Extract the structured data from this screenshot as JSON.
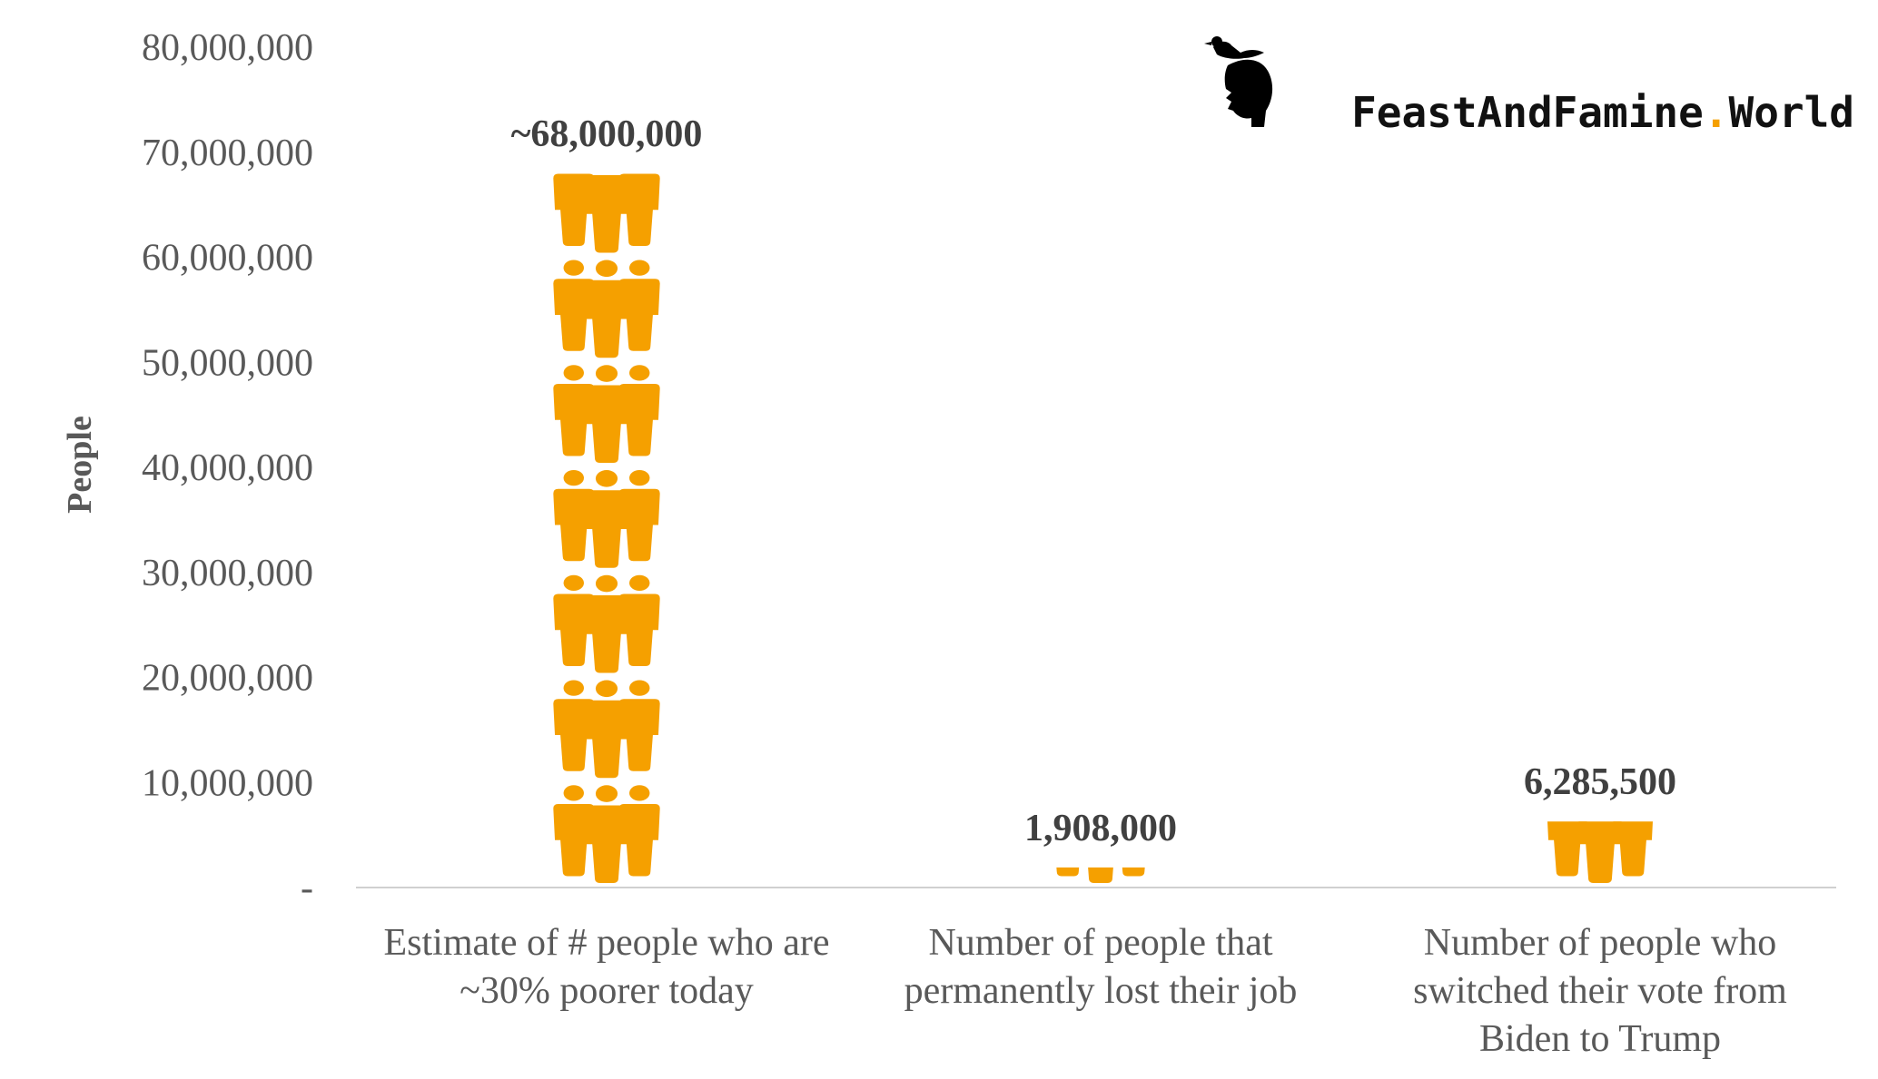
{
  "brand": {
    "name_part1": "FeastAndFamine",
    "dot": ".",
    "name_part2": "World",
    "accent_color": "#F5A000"
  },
  "chart_data": {
    "type": "bar",
    "ylabel": "People",
    "ylim": [
      0,
      80000000
    ],
    "yticks": [
      0,
      10000000,
      20000000,
      30000000,
      40000000,
      50000000,
      60000000,
      70000000,
      80000000
    ],
    "ytick_labels": [
      "-",
      "10,000,000",
      "20,000,000",
      "30,000,000",
      "40,000,000",
      "50,000,000",
      "60,000,000",
      "70,000,000",
      "80,000,000"
    ],
    "categories": [
      [
        "Estimate of # people who are",
        "~30% poorer today"
      ],
      [
        "Number of people that",
        "permanently lost their job"
      ],
      [
        "Number of people who",
        "switched their vote from",
        "Biden to Trump"
      ]
    ],
    "values": [
      68000000,
      1908000,
      6285500
    ],
    "data_labels": [
      "~68,000,000",
      "1,908,000",
      "6,285,500"
    ],
    "bar_color": "#F5A000",
    "grid": false
  }
}
